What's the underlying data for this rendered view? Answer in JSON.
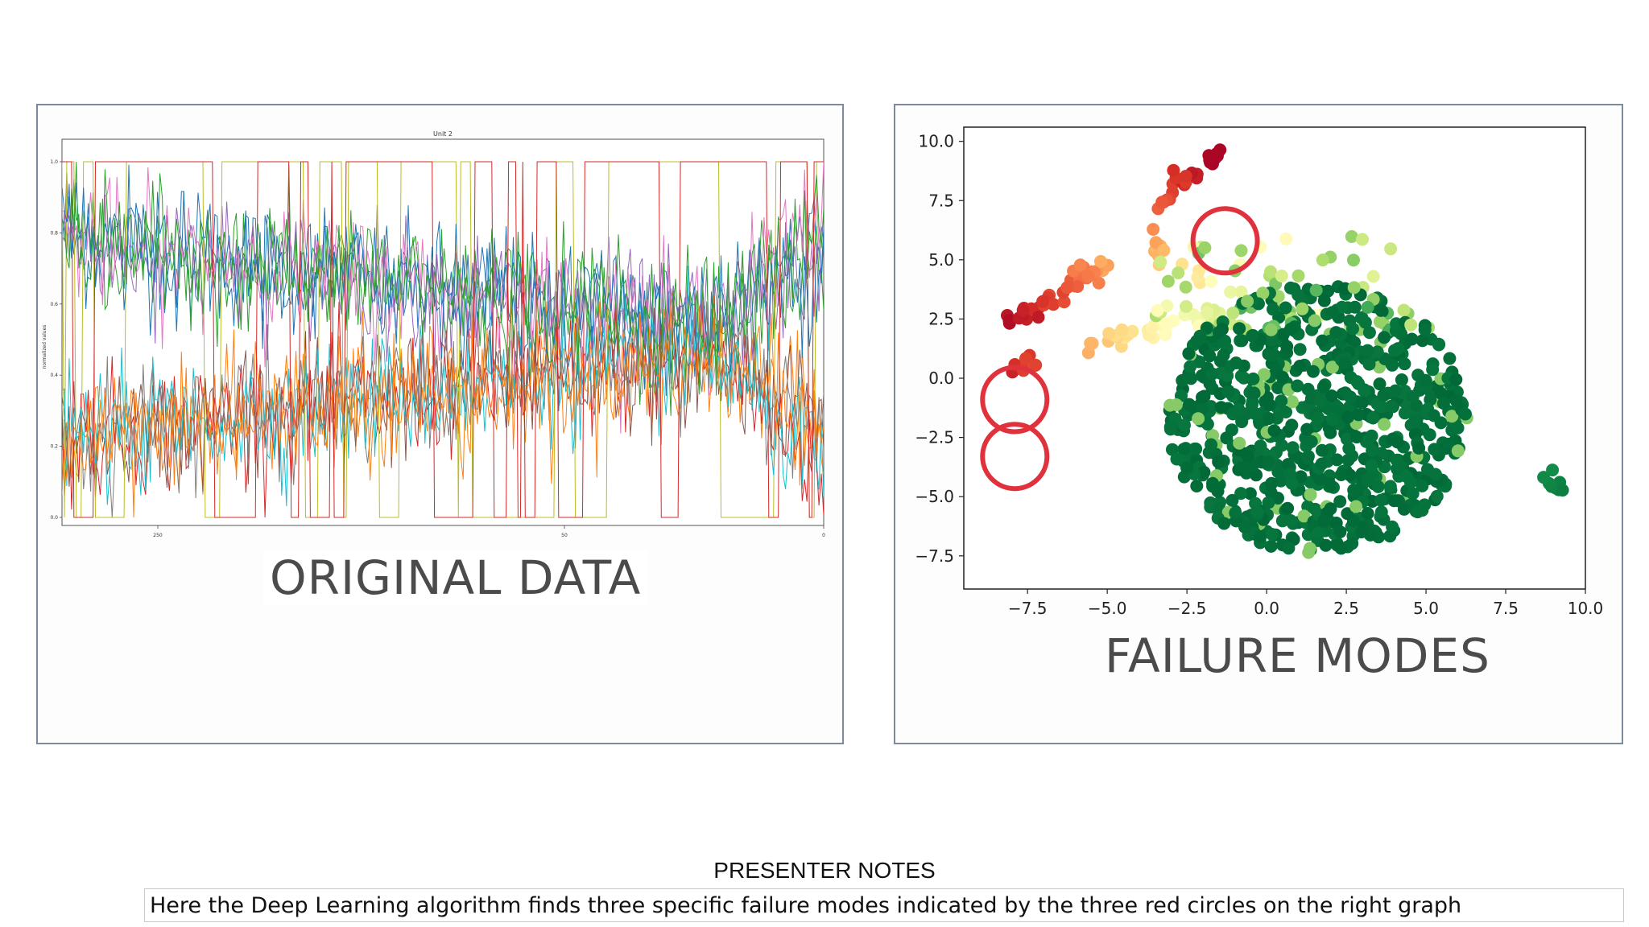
{
  "left_caption": "ORIGINAL DATA",
  "right_caption": "FAILURE MODES",
  "notes": {
    "title": "PRESENTER NOTES",
    "text": "Here the Deep Learning algorithm finds three specific failure modes indicated by the three red circles on the right graph"
  },
  "chart_data": [
    {
      "type": "line",
      "title": "Unit 2",
      "ylabel": "normalized values",
      "xlabel": "",
      "ylim": [
        0,
        1.0
      ],
      "yticks": [
        "0.0",
        "0.2",
        "0.4",
        "0.6",
        "0.8",
        "1.0"
      ],
      "xticks": [
        "250",
        "50",
        "0"
      ],
      "x_direction": "reversed",
      "series_count": 14,
      "series_note_values": "dense multi-sensor normalized traces drifting from bands near 0.2 and 0.8 toward 0.5 and diverging at the end",
      "series_colors": [
        "#1f77b4",
        "#ff7f0e",
        "#2ca02c",
        "#d62728",
        "#9467bd",
        "#8c564b",
        "#e377c2",
        "#7f7f7f",
        "#bcbd22",
        "#17becf"
      ]
    },
    {
      "type": "scatter",
      "xlim": [
        -9.5,
        10.0
      ],
      "ylim": [
        -8.9,
        10.6
      ],
      "xticks": [
        "−7.5",
        "−5.0",
        "−2.5",
        "0.0",
        "2.5",
        "5.0",
        "7.5",
        "10.0"
      ],
      "yticks": [
        "10.0",
        "7.5",
        "5.0",
        "2.5",
        "0.0",
        "−2.5",
        "−5.0",
        "−7.5"
      ],
      "colormap": "RdYlGn",
      "clusters": [
        {
          "name": "top-arm",
          "path": [
            [
              -1.5,
              9.4
            ],
            [
              -2.6,
              8.5
            ],
            [
              -3.4,
              7.2
            ],
            [
              -3.6,
              5.9
            ],
            [
              -3.3,
              4.8
            ],
            [
              -1.8,
              4.2
            ]
          ],
          "level_range": [
            0.0,
            0.45
          ]
        },
        {
          "name": "left-arm",
          "path": [
            [
              -8.2,
              2.5
            ],
            [
              -7.0,
              3.2
            ],
            [
              -5.6,
              4.3
            ],
            [
              -5.2,
              4.8
            ]
          ],
          "level_range": [
            0.02,
            0.3
          ]
        },
        {
          "name": "lower-arm",
          "path": [
            [
              -5.8,
              1.2
            ],
            [
              -4.8,
              1.6
            ],
            [
              -3.7,
              2.0
            ],
            [
              -2.5,
              2.4
            ],
            [
              -1.4,
              2.8
            ]
          ],
          "level_range": [
            0.3,
            0.6
          ]
        },
        {
          "name": "small-red",
          "path": [
            [
              -8.0,
              0.6
            ],
            [
              -7.3,
              0.7
            ]
          ],
          "level_range": [
            0.05,
            0.15
          ]
        },
        {
          "name": "main-blob",
          "center": [
            1.6,
            -1.7
          ],
          "radius": [
            4.7,
            5.7
          ],
          "level_range": [
            0.6,
            1.0
          ]
        },
        {
          "name": "outlier",
          "path": [
            [
              8.8,
              -4.0
            ],
            [
              9.1,
              -5.0
            ]
          ],
          "level_range": [
            0.92,
            0.96
          ]
        }
      ],
      "annotations": [
        {
          "type": "circle",
          "color": "#e0323c",
          "center": [
            -1.3,
            5.8
          ]
        },
        {
          "type": "circle",
          "color": "#e0323c",
          "center": [
            -7.9,
            -0.9
          ]
        },
        {
          "type": "circle",
          "color": "#e0323c",
          "center": [
            -7.9,
            -3.3
          ]
        }
      ]
    }
  ]
}
